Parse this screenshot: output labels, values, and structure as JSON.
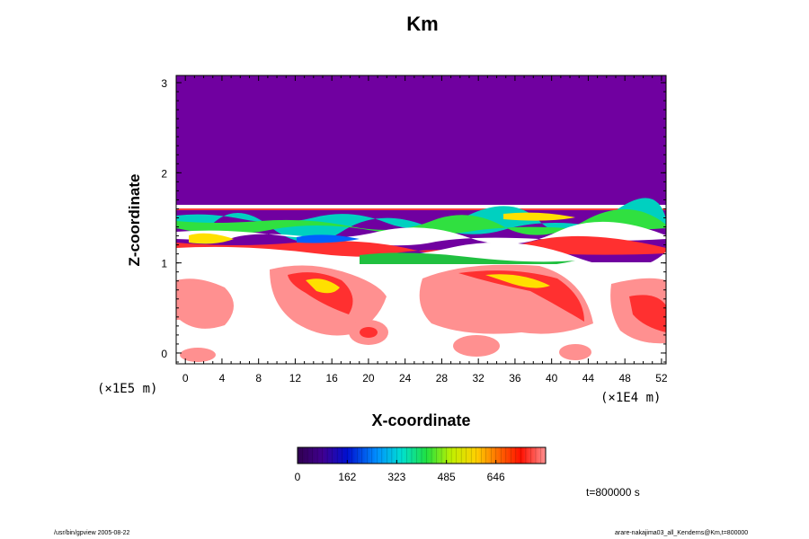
{
  "chart_data": {
    "type": "heatmap",
    "title": "Km",
    "xlabel": "X-coordinate",
    "ylabel": "Z-coordinate",
    "x_scale_note": "(×1E4 m)",
    "y_scale_note": "(×1E5 m)",
    "x_ticks": [
      "0",
      "4",
      "8",
      "12",
      "16",
      "20",
      "24",
      "28",
      "32",
      "36",
      "40",
      "44",
      "48",
      "52"
    ],
    "y_ticks": [
      "0",
      "1",
      "2",
      "3"
    ],
    "xlim": [
      -1,
      52.5
    ],
    "ylim": [
      -0.12,
      3.08
    ],
    "colorbar": {
      "ticks": [
        "0",
        "162",
        "323",
        "485",
        "646"
      ],
      "range": [
        0,
        808
      ],
      "colormap": "rainbow"
    },
    "regions": [
      {
        "description": "uniform",
        "z_range": [
          1.64,
          3.08
        ],
        "value": 0
      },
      {
        "description": "turbulent mixing layer",
        "z_range": [
          1.05,
          1.64
        ],
        "value_range": [
          0,
          646
        ]
      },
      {
        "description": "convective eddies",
        "z_range": [
          -0.12,
          1.05
        ],
        "value_range": [
          162,
          808
        ]
      }
    ],
    "colors": {
      "purple": "#7000a0",
      "background": "#ffffff"
    }
  },
  "annotations": {
    "time": "t=800000 s"
  },
  "footer": {
    "left": "/usr/bin/gpview 2005-08-22",
    "right": "arare-nakajima03_all_Kenderns@Km,t=800000"
  }
}
